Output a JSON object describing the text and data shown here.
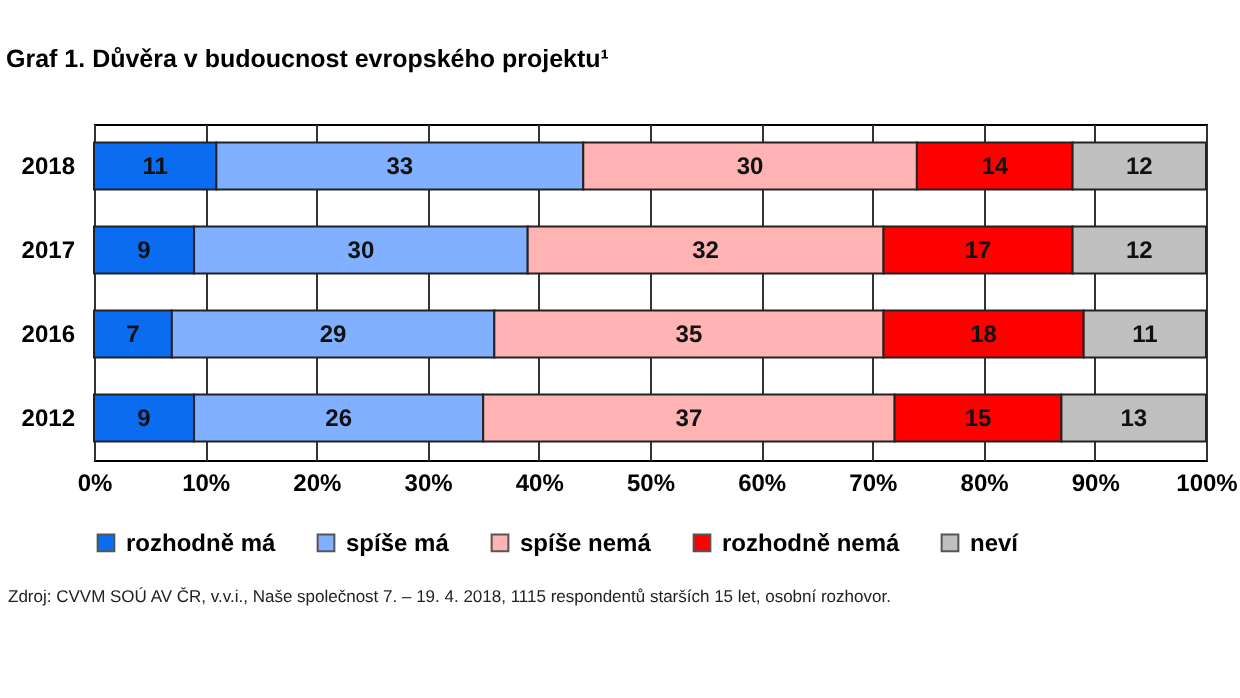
{
  "chart_data": {
    "type": "bar",
    "orientation": "horizontal",
    "stacked": true,
    "title": "Graf 1. Důvěra v budoucnost evropského projektu¹",
    "categories": [
      "2018",
      "2017",
      "2016",
      "2012"
    ],
    "series": [
      {
        "name": "rozhodně má",
        "color": "#0a6cf0",
        "values": [
          11,
          9,
          7,
          9
        ]
      },
      {
        "name": "spíše má",
        "color": "#80b0ff",
        "values": [
          33,
          30,
          29,
          26
        ]
      },
      {
        "name": "spíše nemá",
        "color": "#ffb3b3",
        "values": [
          30,
          32,
          35,
          37
        ]
      },
      {
        "name": "rozhodně nemá",
        "color": "#ff0000",
        "values": [
          14,
          17,
          18,
          15
        ]
      },
      {
        "name": "neví",
        "color": "#c0c0c0",
        "values": [
          12,
          12,
          11,
          13
        ]
      }
    ],
    "xlim": [
      0,
      100
    ],
    "xticks": [
      {
        "value": 0,
        "label": "0%"
      },
      {
        "value": 10,
        "label": "10%"
      },
      {
        "value": 20,
        "label": "20%"
      },
      {
        "value": 30,
        "label": "30%"
      },
      {
        "value": 40,
        "label": "40%"
      },
      {
        "value": 50,
        "label": "50%"
      },
      {
        "value": 60,
        "label": "60%"
      },
      {
        "value": 70,
        "label": "70%"
      },
      {
        "value": 80,
        "label": "80%"
      },
      {
        "value": 90,
        "label": "90%"
      },
      {
        "value": 100,
        "label": "100%"
      }
    ],
    "grid": "x",
    "legend": "bottom",
    "data_labels": true,
    "annotations": [
      "Zdroj: CVVM SOÚ AV ČR, v.v.i., Naše společnost 7. – 19. 4. 2018, 1115 respondentů starších 15 let, osobní rozhovor."
    ]
  }
}
